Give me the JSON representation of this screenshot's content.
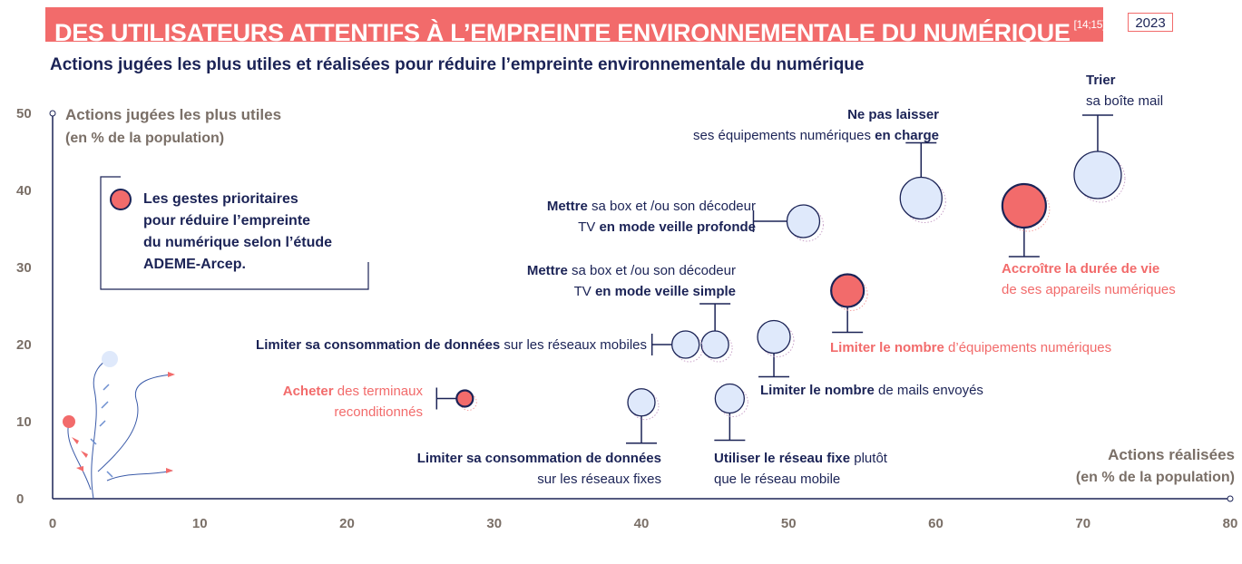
{
  "header": {
    "title": "DES UTILISATEURS ATTENTIFS À L’EMPREINTE ENVIRONNEMENTALE DU NUMÉRIQUE",
    "refs": "[14;15]",
    "year": "2023",
    "subtitle": "Actions jugées les plus utiles et réalisées pour réduire l’empreinte environnementale du numérique"
  },
  "legend": {
    "prefix": "Les ",
    "bold": "gestes prioritaires",
    "line2": "pour réduire l’empreinte",
    "line3": "du numérique selon l’étude",
    "line4": "ADEME-Arcep."
  },
  "colors": {
    "priority": "#f26b6b",
    "normal": "#dfe9fb",
    "ink": "#1b2356",
    "axis": "#7a6f67"
  },
  "chart_data": {
    "type": "scatter",
    "title": "Actions jugées les plus utiles et réalisées pour réduire l’empreinte environnementale du numérique",
    "ylabel": "Actions jugées les plus utiles",
    "ylabel_sub": "(en % de la population)",
    "xlabel": "Actions réalisées",
    "xlabel_sub": "(en % de la population)",
    "xlim": [
      0,
      80
    ],
    "ylim": [
      0,
      50
    ],
    "xticks": [
      "0",
      "10",
      "20",
      "30",
      "40",
      "50",
      "60",
      "70",
      "80"
    ],
    "yticks": [
      "0",
      "10",
      "20",
      "30",
      "40",
      "50"
    ],
    "points": [
      {
        "id": "trier",
        "x": 71,
        "y": 42,
        "priority": false,
        "label": [
          [
            {
              "t": "Trier",
              "b": true
            }
          ],
          [
            {
              "t": "sa boîte mail",
              "b": false
            }
          ]
        ]
      },
      {
        "id": "charge",
        "x": 59,
        "y": 39,
        "priority": false,
        "label": [
          [
            {
              "t": "Ne pas laisser",
              "b": true
            }
          ],
          [
            {
              "t": "ses équipements numériques ",
              "b": false
            },
            {
              "t": "en charge",
              "b": true
            }
          ]
        ]
      },
      {
        "id": "duree",
        "x": 66,
        "y": 38,
        "priority": true,
        "label": [
          [
            {
              "t": "Accroître la durée de vie",
              "b": true
            }
          ],
          [
            {
              "t": "de ses appareils numériques",
              "b": false
            }
          ]
        ]
      },
      {
        "id": "veille-profonde",
        "x": 51,
        "y": 36,
        "priority": false,
        "label": [
          [
            {
              "t": "Mettre",
              "b": true
            },
            {
              "t": " sa box et /ou son décodeur",
              "b": false
            }
          ],
          [
            {
              "t": "TV ",
              "b": false
            },
            {
              "t": "en mode veille profonde",
              "b": true
            }
          ]
        ]
      },
      {
        "id": "limiter-nombre-equip",
        "x": 54,
        "y": 27,
        "priority": true,
        "label": [
          [
            {
              "t": "Limiter le nombre",
              "b": true
            },
            {
              "t": " d’équipements numériques",
              "b": false
            }
          ]
        ]
      },
      {
        "id": "veille-simple",
        "x": 45,
        "y": 20,
        "priority": false,
        "label": [
          [
            {
              "t": "Mettre",
              "b": true
            },
            {
              "t": " sa box et /ou son décodeur",
              "b": false
            }
          ],
          [
            {
              "t": "TV ",
              "b": false
            },
            {
              "t": "en mode veille simple",
              "b": true
            }
          ]
        ]
      },
      {
        "id": "donnees-mobiles",
        "x": 43,
        "y": 20,
        "priority": false,
        "label": [
          [
            {
              "t": "Limiter sa consommation de données",
              "b": true
            },
            {
              "t": " sur les réseaux mobiles",
              "b": false
            }
          ]
        ]
      },
      {
        "id": "mails",
        "x": 49,
        "y": 21,
        "priority": false,
        "label": [
          [
            {
              "t": "Limiter le nombre",
              "b": true
            },
            {
              "t": " de mails envoyés",
              "b": false
            }
          ]
        ]
      },
      {
        "id": "reconditionnes",
        "x": 28,
        "y": 13,
        "priority": true,
        "label": [
          [
            {
              "t": "Acheter",
              "b": true
            },
            {
              "t": " des terminaux",
              "b": false
            }
          ],
          [
            {
              "t": "reconditionnés",
              "b": false
            }
          ]
        ]
      },
      {
        "id": "donnees-fixes",
        "x": 40,
        "y": 12.5,
        "priority": false,
        "label": [
          [
            {
              "t": "Limiter sa consommation de données",
              "b": true
            }
          ],
          [
            {
              "t": "sur les réseaux fixes",
              "b": false
            }
          ]
        ]
      },
      {
        "id": "reseau-fixe",
        "x": 46,
        "y": 13,
        "priority": false,
        "label": [
          [
            {
              "t": "Utiliser le réseau fixe",
              "b": true
            },
            {
              "t": " plutôt",
              "b": false
            }
          ],
          [
            {
              "t": "que le réseau mobile",
              "b": false
            }
          ]
        ]
      }
    ]
  }
}
